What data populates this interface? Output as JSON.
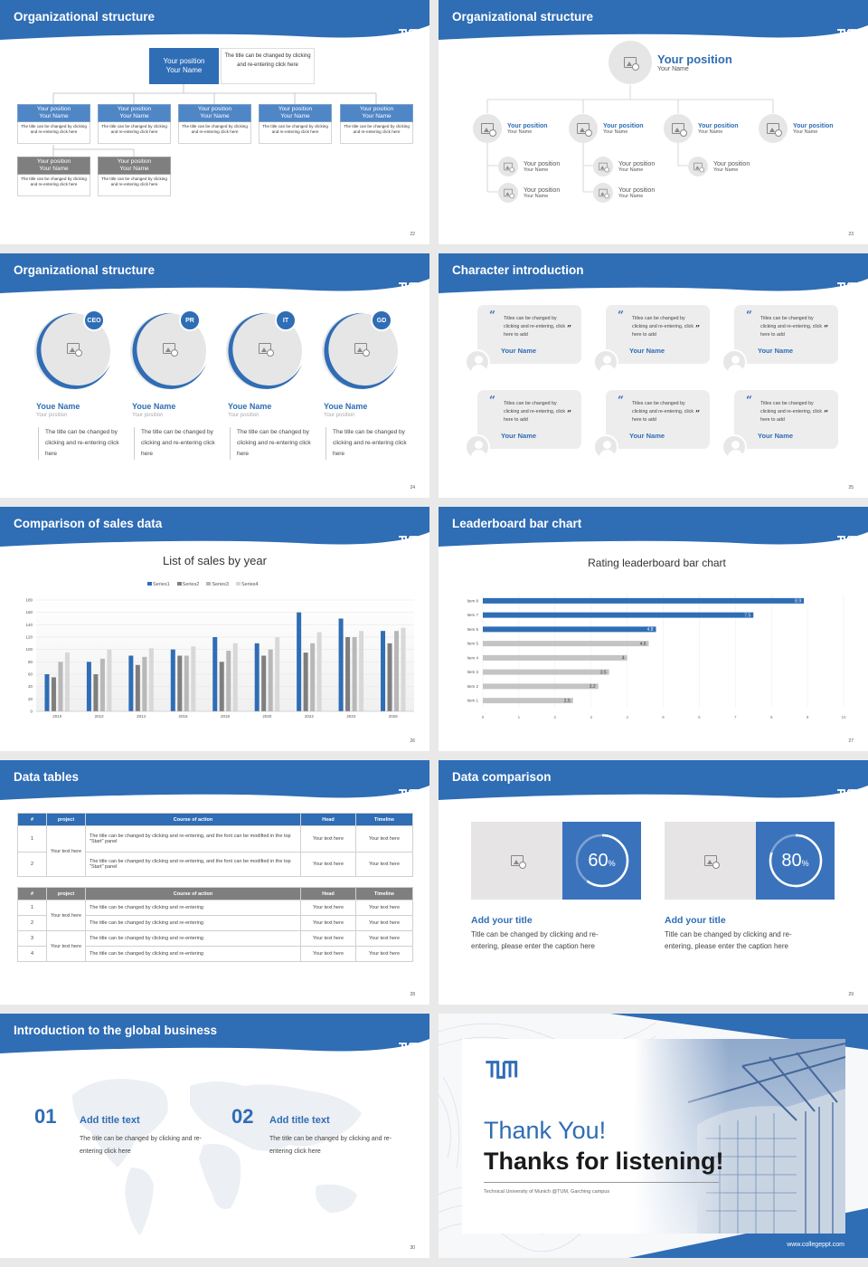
{
  "slides": {
    "s22": {
      "title": "Organizational structure",
      "page": "22",
      "top": {
        "position": "Your position",
        "name": "Your Name",
        "note": "The title can be changed by clicking and re-entering click here"
      },
      "boxes": [
        {
          "position": "Your position",
          "name": "Your Name",
          "desc": "The title can be changed by clicking and re-entering click here"
        },
        {
          "position": "Your position",
          "name": "Your Name",
          "desc": "The title can be changed by clicking and re-entering click here"
        },
        {
          "position": "Your position",
          "name": "Your Name",
          "desc": "The title can be changed by clicking and re-entering click here"
        },
        {
          "position": "Your position",
          "name": "Your Name",
          "desc": "The title can be changed by clicking and re-entering click here"
        },
        {
          "position": "Your position",
          "name": "Your Name",
          "desc": "The title can be changed by clicking and re-entering click here"
        },
        {
          "position": "Your position",
          "name": "Your Name",
          "desc": "The title can be changed by clicking and re-entering click here"
        },
        {
          "position": "Your position",
          "name": "Your Name",
          "desc": "The title can be changed by clicking and re-entering click here"
        }
      ]
    },
    "s23": {
      "title": "Organizational structure",
      "page": "23",
      "top": {
        "position": "Your position",
        "name": "Your Name"
      },
      "people": [
        {
          "position": "Your position",
          "name": "Your Name"
        },
        {
          "position": "Your position",
          "name": "Your Name"
        },
        {
          "position": "Your position",
          "name": "Your Name"
        },
        {
          "position": "Your position",
          "name": "Your Name"
        },
        {
          "position": "Your position",
          "name": "Your Name"
        },
        {
          "position": "Your position",
          "name": "Your Name"
        },
        {
          "position": "Your position",
          "name": "Your Name"
        },
        {
          "position": "Your position",
          "name": "Your Name"
        },
        {
          "position": "Your position",
          "name": "Your Name"
        }
      ]
    },
    "s24": {
      "title": "Organizational structure",
      "page": "24",
      "members": [
        {
          "badge": "CEO",
          "name": "Youe Name",
          "position": "Your position",
          "desc": "The title can be changed by clicking and re-entering click here"
        },
        {
          "badge": "PR",
          "name": "Youe Name",
          "position": "Your position",
          "desc": "The title can be changed by clicking and re-entering click here"
        },
        {
          "badge": "IT",
          "name": "Youe Name",
          "position": "Your position",
          "desc": "The title can be changed by clicking and re-entering click here"
        },
        {
          "badge": "GD",
          "name": "Youe Name",
          "position": "Your position",
          "desc": "The title can be changed by clicking and re-entering click here"
        }
      ]
    },
    "s25": {
      "title": "Character introduction",
      "page": "25",
      "cards": [
        {
          "text": "Titles can be changed by clicking and re-entering, click here to add",
          "name": "Your Name"
        },
        {
          "text": "Titles can be changed by clicking and re-entering, click here to add",
          "name": "Your Name"
        },
        {
          "text": "Titles can be changed by clicking and re-entering, click here to add",
          "name": "Your Name"
        },
        {
          "text": "Titles can be changed by clicking and re-entering, click here to add",
          "name": "Your Name"
        },
        {
          "text": "Titles can be changed by clicking and re-entering, click here to add",
          "name": "Your Name"
        },
        {
          "text": "Titles can be changed by clicking and re-entering, click here to add",
          "name": "Your Name"
        }
      ]
    },
    "s26": {
      "title": "Comparison of sales data",
      "page": "26"
    },
    "s27": {
      "title": "Leaderboard bar chart",
      "page": "27"
    },
    "s28": {
      "title": "Data tables",
      "page": "28",
      "table1": {
        "headers": [
          "#",
          "project",
          "Course of action",
          "Head",
          "Timeline"
        ],
        "group": "Your text here",
        "rows": [
          {
            "n": "1",
            "action": "The title can be changed by clicking and re-entering, and the font can be modified in the top \"Start\" panel",
            "head": "Your text here",
            "time": "Your text here"
          },
          {
            "n": "2",
            "action": "The title can be changed by clicking and re-entering, and the font can be modified in the top \"Start\" panel",
            "head": "Your text here",
            "time": "Your text here"
          }
        ]
      },
      "table2": {
        "headers": [
          "#",
          "project",
          "Course of action",
          "Head",
          "Timeline"
        ],
        "groups": [
          "Your text here",
          "Your text here"
        ],
        "rows": [
          {
            "n": "1",
            "action": "The title can be changed by clicking and re-entering",
            "head": "Your text here",
            "time": "Your text here"
          },
          {
            "n": "2",
            "action": "The title can be changed by clicking and re-entering",
            "head": "Your text here",
            "time": "Your text here"
          },
          {
            "n": "3",
            "action": "The title can be changed by clicking and re-entering",
            "head": "Your text here",
            "time": "Your text here"
          },
          {
            "n": "4",
            "action": "The title can be changed by clicking and re-entering",
            "head": "Your text here",
            "time": "Your text here"
          }
        ]
      }
    },
    "s29": {
      "title": "Data comparison",
      "page": "29",
      "items": [
        {
          "percent": "60",
          "unit": "%",
          "title": "Add your title",
          "desc": "Title can be changed by clicking and re-entering, please enter the caption here"
        },
        {
          "percent": "80",
          "unit": "%",
          "title": "Add your title",
          "desc": "Title can be changed by clicking and re-entering, please enter the caption here"
        }
      ]
    },
    "s30": {
      "title": "Introduction to the global business",
      "page": "30",
      "items": [
        {
          "num": "01",
          "title": "Add title text",
          "desc": "The title can be changed by clicking and re-entering click here"
        },
        {
          "num": "02",
          "title": "Add title text",
          "desc": "The title can be changed by clicking and re-entering click here"
        }
      ]
    },
    "s31": {
      "line1": "Thank You!",
      "line2": "Thanks for listening!",
      "caption": "Technical University of Munich @TUM, Garching campus",
      "url": "www.collegeppt.com"
    }
  },
  "chart_data": [
    {
      "type": "bar",
      "title": "List of sales by year",
      "categories": [
        "2010",
        "2012",
        "2014",
        "2016",
        "2018",
        "2020",
        "2022",
        "2024",
        "2026"
      ],
      "series": [
        {
          "name": "Series1",
          "values": [
            60,
            80,
            90,
            100,
            120,
            110,
            160,
            150,
            130
          ]
        },
        {
          "name": "Series2",
          "values": [
            55,
            60,
            75,
            90,
            80,
            90,
            95,
            120,
            110
          ]
        },
        {
          "name": "Series3",
          "values": [
            80,
            85,
            88,
            90,
            98,
            100,
            110,
            120,
            130
          ]
        },
        {
          "name": "Series4",
          "values": [
            95,
            100,
            102,
            105,
            110,
            120,
            128,
            130,
            135
          ]
        }
      ],
      "ylim": [
        0,
        180
      ],
      "yticks": [
        "0",
        "20",
        "40",
        "60",
        "80",
        "100",
        "120",
        "140",
        "160",
        "180"
      ],
      "legend": "top",
      "colors": [
        "#2f6db5",
        "#7f7f7f",
        "#b8b8b8",
        "#d8d8d8"
      ]
    },
    {
      "type": "bar",
      "orientation": "horizontal",
      "title": "Rating leaderboard bar chart",
      "categories": [
        "Item 8",
        "Item 7",
        "Item 6",
        "Item 5",
        "Item 4",
        "Item 3",
        "Item 2",
        "Item 1"
      ],
      "values": [
        8.9,
        7.5,
        4.8,
        4.6,
        4,
        3.5,
        3.2,
        2.5
      ],
      "labels": [
        "8.9",
        "7.5",
        "4.8",
        "4.6",
        "4",
        "3.5",
        "3.2",
        "2.5"
      ],
      "highlight": [
        true,
        true,
        true,
        false,
        false,
        false,
        false,
        false
      ],
      "xlim": [
        0,
        10
      ],
      "xticks": [
        "0",
        "1",
        "2",
        "3",
        "4",
        "5",
        "6",
        "7",
        "8",
        "9",
        "10"
      ],
      "colors": {
        "top": "#2f6db5",
        "rest": "#c4c4c4"
      }
    }
  ]
}
